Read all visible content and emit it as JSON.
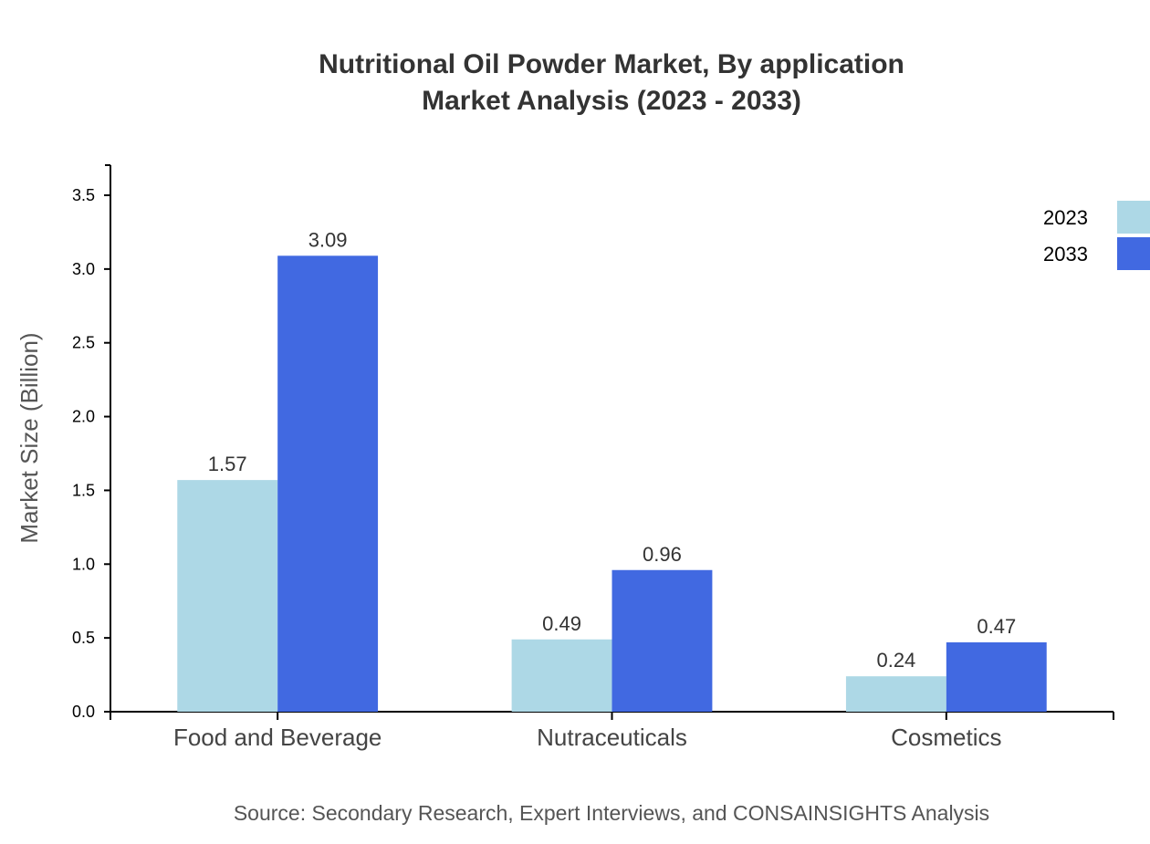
{
  "chart_data": {
    "type": "bar",
    "title": "Nutritional Oil Powder Market, By application",
    "subtitle": "Market Analysis (2023 - 2033)",
    "xlabel": "",
    "ylabel": "Market Size (Billion)",
    "ylim": [
      0,
      3.7
    ],
    "yticks": [
      "0.0",
      "0.5",
      "1.0",
      "1.5",
      "2.0",
      "2.5",
      "3.0",
      "3.5"
    ],
    "categories": [
      "Food and Beverage",
      "Nutraceuticals",
      "Cosmetics"
    ],
    "series": [
      {
        "name": "2023",
        "color": "#add8e6",
        "values": [
          1.57,
          0.49,
          0.24
        ]
      },
      {
        "name": "2033",
        "color": "#4169e1",
        "values": [
          3.09,
          0.96,
          0.47
        ]
      }
    ],
    "legend": "top-right",
    "grid": false,
    "source": "Source: Secondary Research, Expert Interviews, and CONSAINSIGHTS Analysis"
  }
}
